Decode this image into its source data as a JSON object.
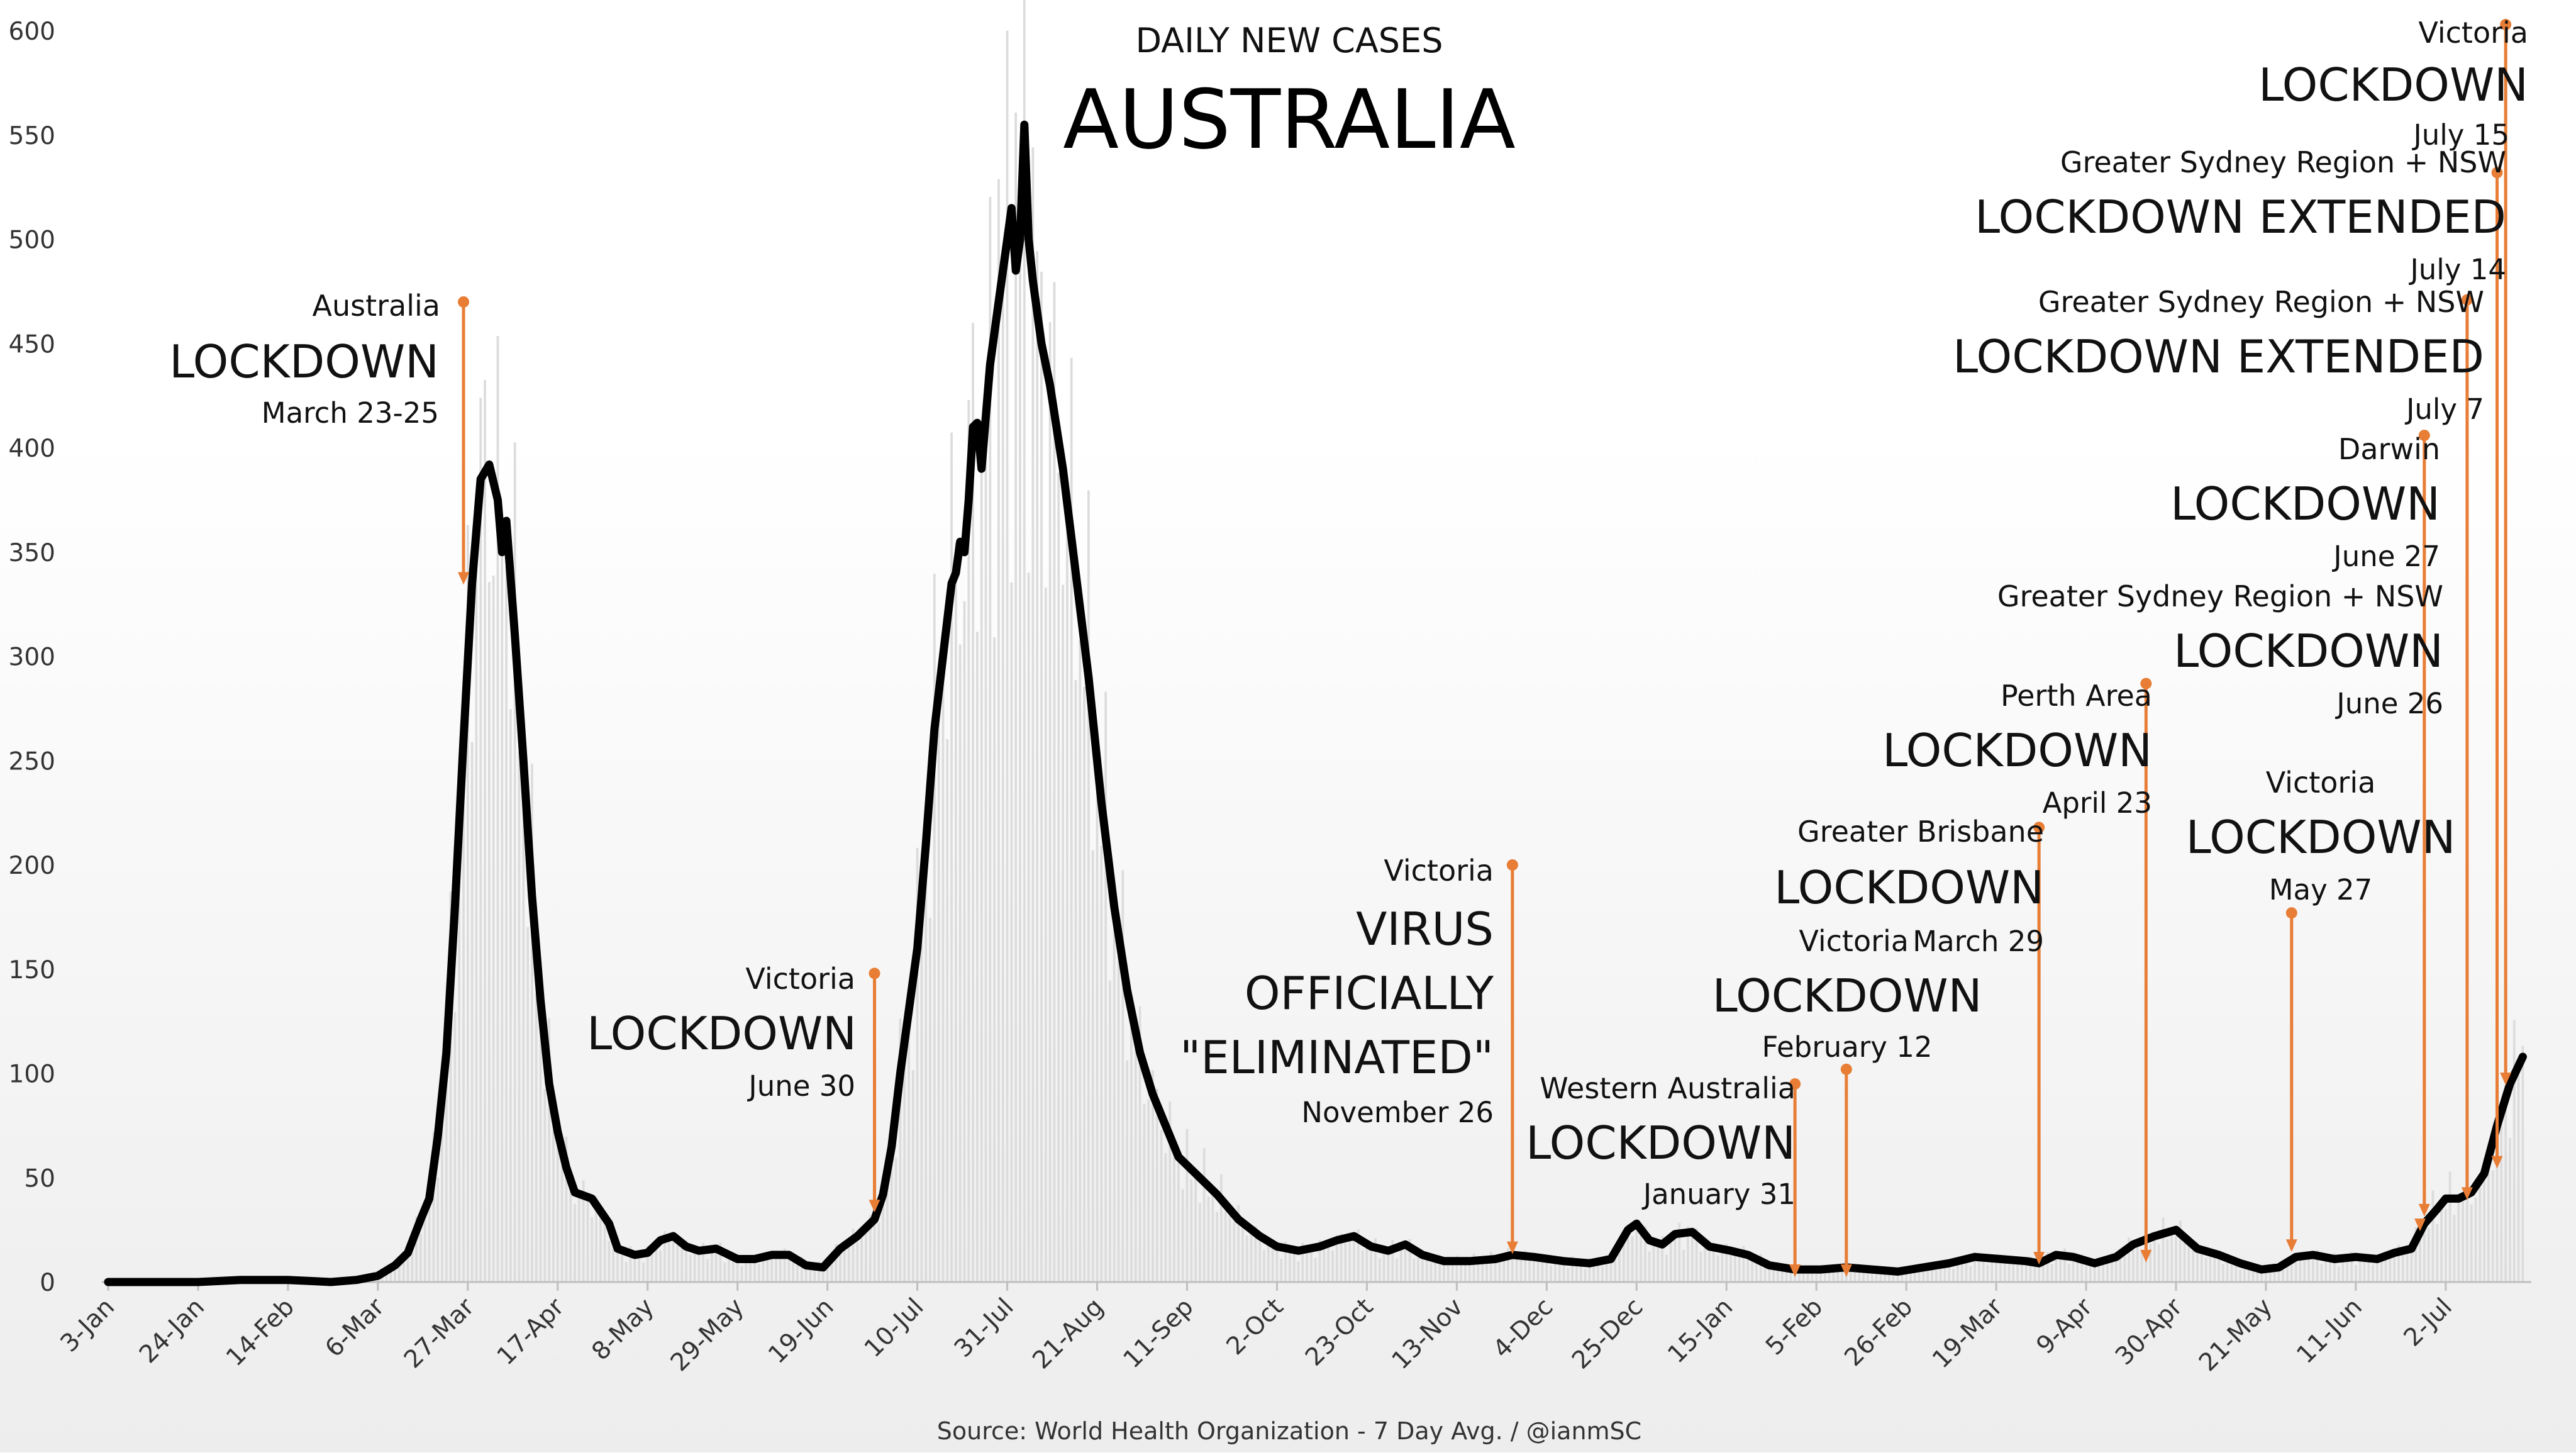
{
  "chart_data": {
    "type": "line",
    "subtitle": "DAILY NEW CASES",
    "title": "AUSTRALIA",
    "source": "Source: World Health Organization - 7 Day Avg. / @ianmSC",
    "series_name": "7 Day Avg.",
    "ylim": [
      0,
      600
    ],
    "yticks": [
      0,
      50,
      100,
      150,
      200,
      250,
      300,
      350,
      400,
      450,
      500,
      550,
      600
    ],
    "x_axis": "date",
    "xlim": [
      "2020-01-03",
      "2021-07-22"
    ],
    "xticks": [
      {
        "date": "2020-01-03",
        "label": "3-Jan"
      },
      {
        "date": "2020-01-24",
        "label": "24-Jan"
      },
      {
        "date": "2020-02-14",
        "label": "14-Feb"
      },
      {
        "date": "2020-03-06",
        "label": "6-Mar"
      },
      {
        "date": "2020-03-27",
        "label": "27-Mar"
      },
      {
        "date": "2020-04-17",
        "label": "17-Apr"
      },
      {
        "date": "2020-05-08",
        "label": "8-May"
      },
      {
        "date": "2020-05-29",
        "label": "29-May"
      },
      {
        "date": "2020-06-19",
        "label": "19-Jun"
      },
      {
        "date": "2020-07-10",
        "label": "10-Jul"
      },
      {
        "date": "2020-07-31",
        "label": "31-Jul"
      },
      {
        "date": "2020-08-21",
        "label": "21-Aug"
      },
      {
        "date": "2020-09-11",
        "label": "11-Sep"
      },
      {
        "date": "2020-10-02",
        "label": "2-Oct"
      },
      {
        "date": "2020-10-23",
        "label": "23-Oct"
      },
      {
        "date": "2020-11-13",
        "label": "13-Nov"
      },
      {
        "date": "2020-12-04",
        "label": "4-Dec"
      },
      {
        "date": "2020-12-25",
        "label": "25-Dec"
      },
      {
        "date": "2021-01-15",
        "label": "15-Jan"
      },
      {
        "date": "2021-02-05",
        "label": "5-Feb"
      },
      {
        "date": "2021-02-26",
        "label": "26-Feb"
      },
      {
        "date": "2021-03-19",
        "label": "19-Mar"
      },
      {
        "date": "2021-04-09",
        "label": "9-Apr"
      },
      {
        "date": "2021-04-30",
        "label": "30-Apr"
      },
      {
        "date": "2021-05-21",
        "label": "21-May"
      },
      {
        "date": "2021-06-11",
        "label": "11-Jun"
      },
      {
        "date": "2021-07-02",
        "label": "2-Jul"
      }
    ],
    "points": [
      [
        "2020-01-03",
        0
      ],
      [
        "2020-01-24",
        0
      ],
      [
        "2020-02-03",
        1
      ],
      [
        "2020-02-14",
        1
      ],
      [
        "2020-02-24",
        0
      ],
      [
        "2020-03-01",
        1
      ],
      [
        "2020-03-06",
        3
      ],
      [
        "2020-03-10",
        8
      ],
      [
        "2020-03-13",
        14
      ],
      [
        "2020-03-16",
        30
      ],
      [
        "2020-03-18",
        40
      ],
      [
        "2020-03-20",
        70
      ],
      [
        "2020-03-22",
        110
      ],
      [
        "2020-03-24",
        180
      ],
      [
        "2020-03-26",
        260
      ],
      [
        "2020-03-28",
        335
      ],
      [
        "2020-03-30",
        385
      ],
      [
        "2020-04-01",
        392
      ],
      [
        "2020-04-03",
        375
      ],
      [
        "2020-04-04",
        350
      ],
      [
        "2020-04-05",
        365
      ],
      [
        "2020-04-07",
        310
      ],
      [
        "2020-04-09",
        250
      ],
      [
        "2020-04-11",
        185
      ],
      [
        "2020-04-13",
        135
      ],
      [
        "2020-04-15",
        95
      ],
      [
        "2020-04-17",
        72
      ],
      [
        "2020-04-19",
        55
      ],
      [
        "2020-04-21",
        43
      ],
      [
        "2020-04-25",
        40
      ],
      [
        "2020-04-29",
        28
      ],
      [
        "2020-05-01",
        16
      ],
      [
        "2020-05-05",
        13
      ],
      [
        "2020-05-08",
        14
      ],
      [
        "2020-05-11",
        20
      ],
      [
        "2020-05-14",
        22
      ],
      [
        "2020-05-17",
        17
      ],
      [
        "2020-05-20",
        15
      ],
      [
        "2020-05-24",
        16
      ],
      [
        "2020-05-29",
        11
      ],
      [
        "2020-06-02",
        11
      ],
      [
        "2020-06-06",
        13
      ],
      [
        "2020-06-10",
        13
      ],
      [
        "2020-06-14",
        8
      ],
      [
        "2020-06-18",
        7
      ],
      [
        "2020-06-22",
        16
      ],
      [
        "2020-06-26",
        22
      ],
      [
        "2020-06-30",
        30
      ],
      [
        "2020-07-02",
        42
      ],
      [
        "2020-07-04",
        65
      ],
      [
        "2020-07-06",
        100
      ],
      [
        "2020-07-08",
        130
      ],
      [
        "2020-07-10",
        160
      ],
      [
        "2020-07-12",
        210
      ],
      [
        "2020-07-14",
        265
      ],
      [
        "2020-07-16",
        300
      ],
      [
        "2020-07-18",
        335
      ],
      [
        "2020-07-19",
        340
      ],
      [
        "2020-07-20",
        355
      ],
      [
        "2020-07-21",
        350
      ],
      [
        "2020-07-22",
        375
      ],
      [
        "2020-07-23",
        410
      ],
      [
        "2020-07-24",
        412
      ],
      [
        "2020-07-25",
        390
      ],
      [
        "2020-07-27",
        440
      ],
      [
        "2020-07-29",
        470
      ],
      [
        "2020-07-31",
        500
      ],
      [
        "2020-08-01",
        515
      ],
      [
        "2020-08-02",
        485
      ],
      [
        "2020-08-03",
        500
      ],
      [
        "2020-08-04",
        555
      ],
      [
        "2020-08-05",
        500
      ],
      [
        "2020-08-06",
        480
      ],
      [
        "2020-08-08",
        450
      ],
      [
        "2020-08-10",
        430
      ],
      [
        "2020-08-13",
        390
      ],
      [
        "2020-08-16",
        340
      ],
      [
        "2020-08-19",
        290
      ],
      [
        "2020-08-22",
        230
      ],
      [
        "2020-08-25",
        180
      ],
      [
        "2020-08-28",
        140
      ],
      [
        "2020-08-31",
        110
      ],
      [
        "2020-09-03",
        90
      ],
      [
        "2020-09-06",
        75
      ],
      [
        "2020-09-09",
        60
      ],
      [
        "2020-09-13",
        52
      ],
      [
        "2020-09-18",
        42
      ],
      [
        "2020-09-23",
        30
      ],
      [
        "2020-09-28",
        22
      ],
      [
        "2020-10-02",
        17
      ],
      [
        "2020-10-07",
        15
      ],
      [
        "2020-10-12",
        17
      ],
      [
        "2020-10-16",
        20
      ],
      [
        "2020-10-20",
        22
      ],
      [
        "2020-10-24",
        17
      ],
      [
        "2020-10-28",
        15
      ],
      [
        "2020-11-01",
        18
      ],
      [
        "2020-11-05",
        13
      ],
      [
        "2020-11-10",
        10
      ],
      [
        "2020-11-16",
        10
      ],
      [
        "2020-11-22",
        11
      ],
      [
        "2020-11-26",
        13
      ],
      [
        "2020-12-01",
        12
      ],
      [
        "2020-12-08",
        10
      ],
      [
        "2020-12-14",
        9
      ],
      [
        "2020-12-19",
        11
      ],
      [
        "2020-12-21",
        18
      ],
      [
        "2020-12-23",
        25
      ],
      [
        "2020-12-25",
        28
      ],
      [
        "2020-12-28",
        20
      ],
      [
        "2020-12-31",
        18
      ],
      [
        "2021-01-03",
        23
      ],
      [
        "2021-01-07",
        24
      ],
      [
        "2021-01-11",
        17
      ],
      [
        "2021-01-16",
        15
      ],
      [
        "2021-01-20",
        13
      ],
      [
        "2021-01-25",
        8
      ],
      [
        "2021-01-31",
        6
      ],
      [
        "2021-02-06",
        6
      ],
      [
        "2021-02-12",
        7
      ],
      [
        "2021-02-18",
        6
      ],
      [
        "2021-02-24",
        5
      ],
      [
        "2021-03-02",
        7
      ],
      [
        "2021-03-08",
        9
      ],
      [
        "2021-03-14",
        12
      ],
      [
        "2021-03-20",
        11
      ],
      [
        "2021-03-26",
        10
      ],
      [
        "2021-03-29",
        9
      ],
      [
        "2021-04-02",
        13
      ],
      [
        "2021-04-06",
        12
      ],
      [
        "2021-04-11",
        9
      ],
      [
        "2021-04-16",
        12
      ],
      [
        "2021-04-20",
        18
      ],
      [
        "2021-04-25",
        22
      ],
      [
        "2021-04-30",
        25
      ],
      [
        "2021-05-05",
        16
      ],
      [
        "2021-05-10",
        13
      ],
      [
        "2021-05-15",
        9
      ],
      [
        "2021-05-20",
        6
      ],
      [
        "2021-05-24",
        7
      ],
      [
        "2021-05-28",
        12
      ],
      [
        "2021-06-01",
        13
      ],
      [
        "2021-06-06",
        11
      ],
      [
        "2021-06-11",
        12
      ],
      [
        "2021-06-16",
        11
      ],
      [
        "2021-06-20",
        14
      ],
      [
        "2021-06-24",
        16
      ],
      [
        "2021-06-27",
        28
      ],
      [
        "2021-06-30",
        35
      ],
      [
        "2021-07-02",
        40
      ],
      [
        "2021-07-05",
        40
      ],
      [
        "2021-07-08",
        43
      ],
      [
        "2021-07-11",
        52
      ],
      [
        "2021-07-14",
        75
      ],
      [
        "2021-07-17",
        95
      ],
      [
        "2021-07-20",
        108
      ]
    ],
    "annotations": [
      {
        "location": "Australia",
        "event": "LOCKDOWN",
        "date_text": "March 23-25",
        "date": "2020-03-26",
        "align": "end",
        "top": 470,
        "tip": 335
      },
      {
        "location": "Victoria",
        "event": "LOCKDOWN",
        "date_text": "June 30",
        "date": "2020-06-30",
        "align": "end",
        "top": 148,
        "tip": 34
      },
      {
        "location": "Victoria",
        "event_lines": [
          "VIRUS",
          "OFFICIALLY",
          "\"ELIMINATED\""
        ],
        "date_text": "November 26",
        "date": "2020-11-26",
        "align": "end",
        "top": 200,
        "tip": 14
      },
      {
        "location": "Western Australia",
        "event": "LOCKDOWN",
        "date_text": "January 31",
        "date": "2021-01-31",
        "align": "end",
        "top": 95,
        "tip": 3
      },
      {
        "location": "Victoria",
        "event": "LOCKDOWN",
        "date_text": "February 12",
        "date": "2021-02-12",
        "align": "middle",
        "top": 102,
        "tip": 3
      },
      {
        "location": "Greater Brisbane",
        "event": "LOCKDOWN",
        "date_text": "March 29",
        "date": "2021-03-29",
        "align": "end",
        "top": 218,
        "tip": 9
      },
      {
        "location": "Perth Area",
        "event": "LOCKDOWN",
        "date_text": "April 23",
        "date": "2021-04-23",
        "align": "end",
        "top": 287,
        "tip": 10
      },
      {
        "location": "Victoria",
        "event": "LOCKDOWN",
        "date_text": "May 27",
        "date": "2021-05-27",
        "align": "middle",
        "top": 177,
        "tip": 15
      },
      {
        "location": "Greater Sydney Region + NSW",
        "event": "LOCKDOWN",
        "date_text": "June 26",
        "date": "2021-06-26",
        "align": "end",
        "top": null,
        "tip": 25
      },
      {
        "location": "Darwin",
        "event": "LOCKDOWN",
        "date_text": "June 27",
        "date": "2021-06-27",
        "align": "end",
        "top": 406,
        "tip": 32
      },
      {
        "location": "Greater Sydney Region + NSW",
        "event": "LOCKDOWN EXTENDED",
        "date_text": "July 7",
        "date": "2021-07-07",
        "align": "end",
        "top": 471,
        "tip": 40
      },
      {
        "location": "Greater Sydney Region + NSW",
        "event": "LOCKDOWN EXTENDED",
        "date_text": "July 14",
        "date": "2021-07-14",
        "align": "end",
        "top": 532,
        "tip": 55
      },
      {
        "location": "Victoria",
        "event": "LOCKDOWN",
        "date_text": "July 15",
        "date": "2021-07-16",
        "align": "end",
        "top": 603,
        "tip": 95
      }
    ],
    "colors": {
      "line": "#000000",
      "annotation": "#E87D35",
      "bars": "#dcdcdc",
      "axis": "#bfbfbf"
    }
  }
}
